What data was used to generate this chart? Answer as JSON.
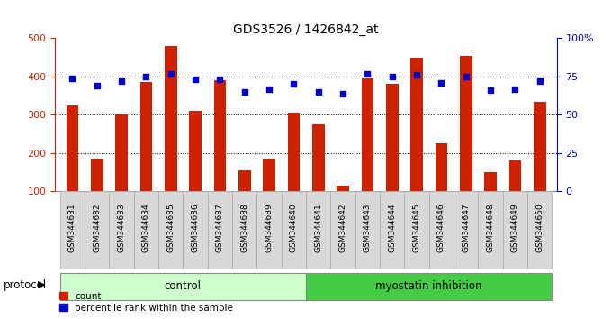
{
  "title": "GDS3526 / 1426842_at",
  "categories": [
    "GSM344631",
    "GSM344632",
    "GSM344633",
    "GSM344634",
    "GSM344635",
    "GSM344636",
    "GSM344637",
    "GSM344638",
    "GSM344639",
    "GSM344640",
    "GSM344641",
    "GSM344642",
    "GSM344643",
    "GSM344644",
    "GSM344645",
    "GSM344646",
    "GSM344647",
    "GSM344648",
    "GSM344649",
    "GSM344650"
  ],
  "bar_values": [
    325,
    185,
    300,
    385,
    480,
    310,
    390,
    155,
    185,
    305,
    275,
    115,
    395,
    380,
    450,
    225,
    455,
    150,
    180,
    335
  ],
  "percentile_values": [
    74,
    69,
    72,
    75,
    77,
    73,
    73,
    65,
    67,
    70,
    65,
    64,
    77,
    75,
    76,
    71,
    75,
    66,
    67,
    72
  ],
  "bar_color": "#cc2200",
  "percentile_color": "#0000cc",
  "control_count": 10,
  "control_label": "control",
  "treatment_label": "myostatin inhibition",
  "control_bg": "#ccffcc",
  "treatment_bg": "#44cc44",
  "ylim_left": [
    100,
    500
  ],
  "ylim_right": [
    0,
    100
  ],
  "yticks_left": [
    100,
    200,
    300,
    400,
    500
  ],
  "yticks_right": [
    0,
    25,
    50,
    75,
    100
  ],
  "ytick_labels_right": [
    "0",
    "25",
    "50",
    "75",
    "100%"
  ],
  "grid_values": [
    200,
    300,
    400
  ],
  "protocol_label": "protocol",
  "legend_count_label": "count",
  "legend_percentile_label": "percentile rank within the sample",
  "title_fontsize": 10,
  "tick_label_fontsize": 6.5,
  "axis_color_left": "#cc2200",
  "axis_color_right": "#0000cc",
  "bar_width": 0.5
}
